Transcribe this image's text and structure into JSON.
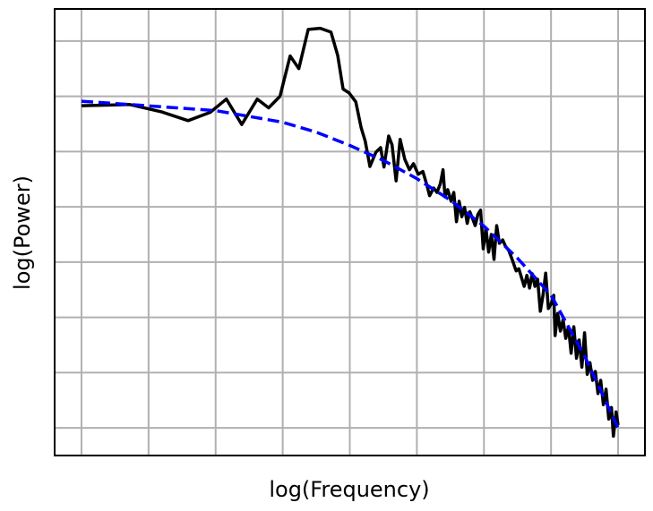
{
  "chart_data": {
    "type": "line",
    "title": "",
    "xlabel": "log(Frequency)",
    "ylabel": "log(Power)",
    "xlim": [
      -0.4,
      8.4
    ],
    "ylim": [
      -0.5,
      7.58
    ],
    "xgrid": [
      0,
      1,
      2,
      3,
      4,
      5,
      6,
      7,
      8
    ],
    "ygrid": [
      0,
      1,
      2,
      3,
      4,
      5,
      6,
      7
    ],
    "grid": true,
    "tick_labels_shown": false,
    "series": [
      {
        "style": "solid",
        "color": "#000000",
        "x": [
          0,
          0.72,
          1.19,
          1.59,
          1.92,
          2.16,
          2.39,
          2.62,
          2.79,
          2.96,
          3.11,
          3.24,
          3.38,
          3.56,
          3.72,
          3.82,
          3.9,
          3.99,
          4.09,
          4.17,
          4.23,
          4.3,
          4.39,
          4.46,
          4.51,
          4.58,
          4.63,
          4.69,
          4.75,
          4.82,
          4.89,
          4.95,
          5.02,
          5.09,
          5.15,
          5.19,
          5.25,
          5.3,
          5.35,
          5.39,
          5.42,
          5.46,
          5.51,
          5.55,
          5.59,
          5.63,
          5.67,
          5.71,
          5.75,
          5.79,
          5.83,
          5.87,
          5.91,
          5.95,
          5.99,
          6.03,
          6.07,
          6.11,
          6.15,
          6.19,
          6.23,
          6.28,
          6.32,
          6.37,
          6.42,
          6.48,
          6.52,
          6.56,
          6.6,
          6.64,
          6.68,
          6.72,
          6.76,
          6.8,
          6.84,
          6.88,
          6.92,
          6.96,
          7.0,
          7.04,
          7.06,
          7.1,
          7.14,
          7.18,
          7.22,
          7.26,
          7.3,
          7.34,
          7.38,
          7.42,
          7.46,
          7.5,
          7.54,
          7.58,
          7.62,
          7.66,
          7.7,
          7.74,
          7.78,
          7.82,
          7.86,
          7.9,
          7.93,
          7.97,
          8.0
        ],
        "y": [
          5.83,
          5.85,
          5.72,
          5.56,
          5.71,
          5.95,
          5.49,
          5.95,
          5.79,
          6.0,
          6.73,
          6.5,
          7.21,
          7.23,
          7.16,
          6.74,
          6.13,
          6.06,
          5.9,
          5.43,
          5.19,
          4.73,
          4.99,
          5.07,
          4.72,
          5.28,
          5.12,
          4.47,
          5.22,
          4.86,
          4.67,
          4.78,
          4.59,
          4.64,
          4.39,
          4.2,
          4.34,
          4.26,
          4.42,
          4.67,
          4.18,
          4.31,
          4.1,
          4.26,
          3.73,
          4.1,
          3.82,
          3.99,
          3.7,
          3.91,
          3.79,
          3.66,
          3.86,
          3.94,
          3.24,
          3.61,
          3.18,
          3.5,
          3.05,
          3.66,
          3.34,
          3.4,
          3.29,
          3.21,
          3.05,
          2.84,
          2.88,
          2.72,
          2.56,
          2.76,
          2.53,
          2.79,
          2.56,
          2.69,
          2.11,
          2.4,
          2.8,
          2.16,
          2.24,
          2.4,
          1.67,
          2.07,
          1.75,
          1.96,
          1.62,
          1.83,
          1.35,
          1.83,
          1.26,
          1.59,
          1.1,
          1.72,
          0.97,
          1.18,
          0.86,
          1.02,
          0.62,
          0.86,
          0.42,
          0.7,
          0.16,
          0.37,
          -0.15,
          0.29,
          0.05
        ]
      },
      {
        "style": "dashed",
        "color": "#0000ff",
        "x": [
          0,
          0.72,
          2,
          3,
          3.5,
          4,
          4.5,
          5,
          5.5,
          6,
          6.5,
          7,
          7.5,
          8
        ],
        "y": [
          5.91,
          5.85,
          5.74,
          5.53,
          5.35,
          5.11,
          4.84,
          4.51,
          4.12,
          3.65,
          3.07,
          2.4,
          1.3,
          0.0
        ]
      }
    ]
  }
}
